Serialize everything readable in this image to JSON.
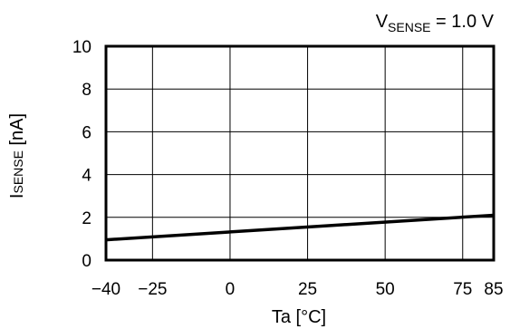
{
  "chart_data": {
    "type": "line",
    "title": "",
    "condition": {
      "prefix": "V",
      "subscript": "SENSE",
      "suffix": " = 1.0 V"
    },
    "xlabel": "Ta [°C]",
    "ylabel": {
      "prefix": "I",
      "small": "SENSE",
      "suffix": " [nA]"
    },
    "xlim": [
      -40,
      85
    ],
    "ylim": [
      0,
      10
    ],
    "x_ticks": [
      -40,
      -25,
      0,
      25,
      50,
      75,
      85
    ],
    "x_tick_labels": [
      "−40",
      "−25",
      "0",
      "25",
      "50",
      "75",
      "85"
    ],
    "y_ticks": [
      0,
      2,
      4,
      6,
      8,
      10
    ],
    "y_tick_labels": [
      "0",
      "2",
      "4",
      "6",
      "8",
      "10"
    ],
    "grid": true,
    "series": [
      {
        "x": [
          -40,
          85
        ],
        "y": [
          0.95,
          2.1
        ],
        "color": "#000000"
      }
    ]
  }
}
